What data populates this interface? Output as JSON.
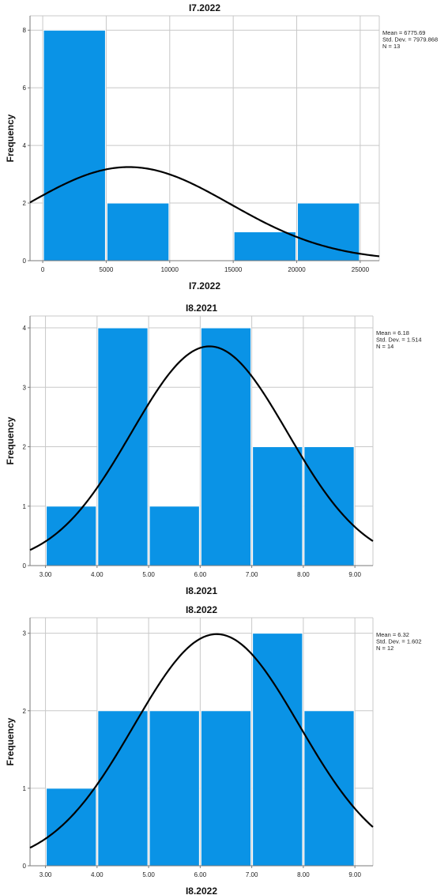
{
  "colors": {
    "bar": "#0a93e6",
    "bar_edge": "#ffffff",
    "curve": "#000000",
    "grid": "#c8c8c8",
    "axis": "#7a7a7a"
  },
  "chart_data": [
    {
      "type": "bar",
      "subtype": "histogram",
      "title": "I7.2022",
      "xlabel": "I7.2022",
      "ylabel": "Frequency",
      "bins": [
        [
          0,
          5000
        ],
        [
          5000,
          10000
        ],
        [
          10000,
          15000
        ],
        [
          15000,
          20000
        ],
        [
          20000,
          25000
        ]
      ],
      "values": [
        8,
        2,
        0,
        1,
        2
      ],
      "xlim": [
        -1000,
        26500
      ],
      "ylim": [
        0,
        8.5
      ],
      "xticks": [
        0,
        5000,
        10000,
        15000,
        20000,
        25000
      ],
      "xtick_labels": [
        "0",
        "5000",
        "10000",
        "15000",
        "20000",
        "25000"
      ],
      "yticks": [
        0,
        2,
        4,
        6,
        8
      ],
      "ytick_labels": [
        "0",
        "2",
        "4",
        "6",
        "8"
      ],
      "grid": true,
      "legend_position": "top-right",
      "normal_curve": {
        "mean": 6775.69,
        "sd": 7979.868,
        "n": 13
      },
      "stats": [
        "Mean = 6775.69",
        "Std. Dev. = 7979.868",
        "N = 13"
      ]
    },
    {
      "type": "bar",
      "subtype": "histogram",
      "title": "I8.2021",
      "xlabel": "I8.2021",
      "ylabel": "Frequency",
      "bins": [
        [
          3,
          4
        ],
        [
          4,
          5
        ],
        [
          5,
          6
        ],
        [
          6,
          7
        ],
        [
          7,
          8
        ],
        [
          8,
          9
        ]
      ],
      "values": [
        1,
        4,
        1,
        4,
        2,
        2
      ],
      "xlim": [
        2.7,
        9.35
      ],
      "ylim": [
        0,
        4.2
      ],
      "xticks": [
        3,
        4,
        5,
        6,
        7,
        8,
        9
      ],
      "xtick_labels": [
        "3.00",
        "4.00",
        "5.00",
        "6.00",
        "7.00",
        "8.00",
        "9.00"
      ],
      "yticks": [
        0,
        1,
        2,
        3,
        4
      ],
      "ytick_labels": [
        "0",
        "1",
        "2",
        "3",
        "4"
      ],
      "grid": true,
      "legend_position": "top-right",
      "normal_curve": {
        "mean": 6.18,
        "sd": 1.514,
        "n": 14
      },
      "stats": [
        "Mean = 6.18",
        "Std. Dev. = 1.514",
        "N = 14"
      ]
    },
    {
      "type": "bar",
      "subtype": "histogram",
      "title": "I8.2022",
      "xlabel": "I8.2022",
      "ylabel": "Frequency",
      "bins": [
        [
          3,
          4
        ],
        [
          4,
          5
        ],
        [
          5,
          6
        ],
        [
          6,
          7
        ],
        [
          7,
          8
        ],
        [
          8,
          9
        ]
      ],
      "values": [
        1,
        2,
        2,
        2,
        3,
        2
      ],
      "xlim": [
        2.7,
        9.35
      ],
      "ylim": [
        0,
        3.2
      ],
      "xticks": [
        3,
        4,
        5,
        6,
        7,
        8,
        9
      ],
      "xtick_labels": [
        "3.00",
        "4.00",
        "5.00",
        "6.00",
        "7.00",
        "8.00",
        "9.00"
      ],
      "yticks": [
        0,
        1,
        2,
        3
      ],
      "ytick_labels": [
        "0",
        "1",
        "2",
        "3"
      ],
      "grid": true,
      "legend_position": "top-right",
      "normal_curve": {
        "mean": 6.32,
        "sd": 1.602,
        "n": 12
      },
      "stats": [
        "Mean = 6.32",
        "Std. Dev. = 1.602",
        "N = 12"
      ]
    }
  ]
}
